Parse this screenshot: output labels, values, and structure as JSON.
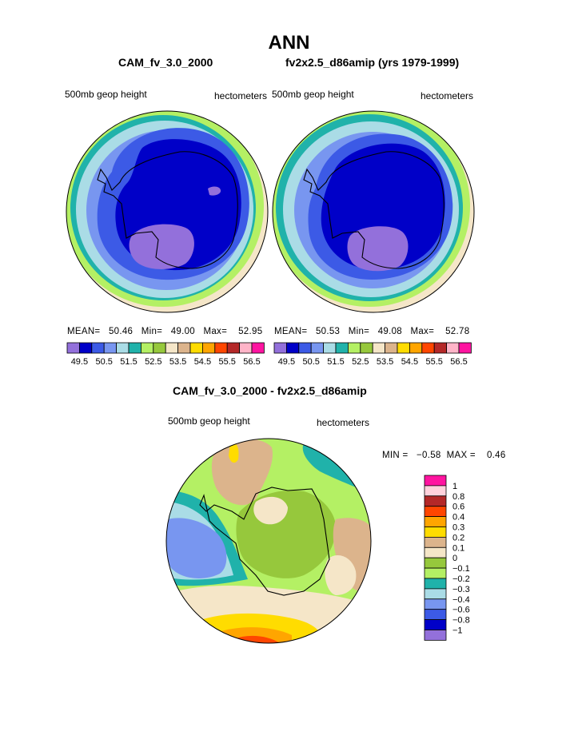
{
  "main_title": "ANN",
  "panels": [
    {
      "case_title": "CAM_fv_3.0_2000",
      "left_label": "500mb geop height",
      "right_label": "hectometers",
      "stats": {
        "mean_label": "MEAN=",
        "mean": "50.46",
        "min_label": "Min=",
        "min": "49.00",
        "max_label": "Max=",
        "max": "52.95"
      }
    },
    {
      "case_title": "fv2x2.5_d86amip (yrs 1979-1999)",
      "left_label": "500mb geop height",
      "right_label": "hectometers",
      "stats": {
        "mean_label": "MEAN=",
        "mean": "50.53",
        "min_label": "Min=",
        "min": "49.08",
        "max_label": "Max=",
        "max": "52.78"
      }
    }
  ],
  "diff_panel": {
    "title": "CAM_fv_3.0_2000 - fv2x2.5_d86amip",
    "left_label": "500mb geop height",
    "right_label": "hectometers",
    "stats": {
      "min_label": "MIN =",
      "min": "−0.58",
      "max_label": "MAX =",
      "max": "0.46"
    }
  },
  "chart_data": [
    {
      "type": "heatmap",
      "title": "CAM_fv_3.0_2000",
      "projection": "south polar stereographic",
      "units": "hectometers",
      "variable": "500mb geop height",
      "levels": [
        "49.5",
        "50.5",
        "51.5",
        "52.5",
        "53.5",
        "54.5",
        "55.5",
        "56.5"
      ],
      "colorbar_colors": [
        "#9370db",
        "#0000c8",
        "#3c5ae6",
        "#7896f0",
        "#aadce6",
        "#20b2aa",
        "#b4f064",
        "#96c83c",
        "#f5e6c8",
        "#dcb48c",
        "#ffdc00",
        "#ffa500",
        "#ff4600",
        "#b42828",
        "#ffb4c8",
        "#ff14a0"
      ],
      "mean": 50.46,
      "min": 49.0,
      "max": 52.95
    },
    {
      "type": "heatmap",
      "title": "fv2x2.5_d86amip (yrs 1979-1999)",
      "projection": "south polar stereographic",
      "units": "hectometers",
      "variable": "500mb geop height",
      "levels": [
        "49.5",
        "50.5",
        "51.5",
        "52.5",
        "53.5",
        "54.5",
        "55.5",
        "56.5"
      ],
      "colorbar_colors": [
        "#9370db",
        "#0000c8",
        "#3c5ae6",
        "#7896f0",
        "#aadce6",
        "#20b2aa",
        "#b4f064",
        "#96c83c",
        "#f5e6c8",
        "#dcb48c",
        "#ffdc00",
        "#ffa500",
        "#ff4600",
        "#b42828",
        "#ffb4c8",
        "#ff14a0"
      ],
      "mean": 50.53,
      "min": 49.08,
      "max": 52.78
    },
    {
      "type": "heatmap",
      "title": "CAM_fv_3.0_2000 - fv2x2.5_d86amip",
      "projection": "south polar stereographic",
      "units": "hectometers",
      "variable": "500mb geop height",
      "levels": [
        "1",
        "0.8",
        "0.6",
        "0.4",
        "0.3",
        "0.2",
        "0.1",
        "0",
        "−0.1",
        "−0.2",
        "−0.3",
        "−0.4",
        "−0.6",
        "−0.8",
        "−1"
      ],
      "colorbar_colors": [
        "#ff14a0",
        "#ffd2dc",
        "#b42828",
        "#ff4600",
        "#ffa500",
        "#ffdc00",
        "#dcb48c",
        "#f5e6c8",
        "#96c83c",
        "#b4f064",
        "#20b2aa",
        "#aadce6",
        "#7896f0",
        "#3c5ae6",
        "#0000c8",
        "#9370db"
      ],
      "min": -0.58,
      "max": 0.46
    }
  ]
}
